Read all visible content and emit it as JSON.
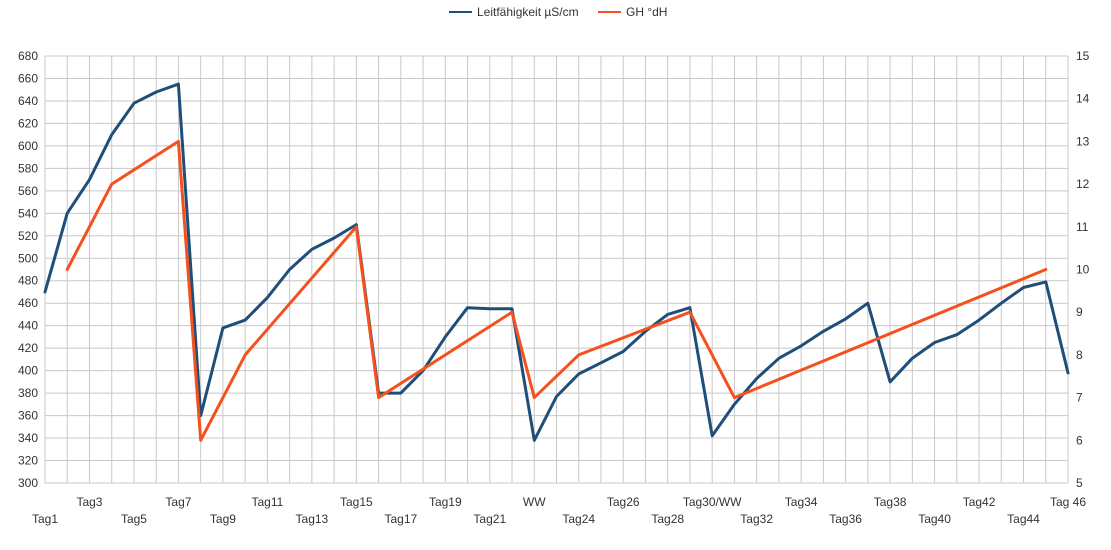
{
  "chart_data": {
    "type": "line",
    "legend": {
      "position": "top"
    },
    "grid": true,
    "left_axis": {
      "range": [
        300,
        680
      ],
      "ticks": [
        300,
        320,
        340,
        360,
        380,
        400,
        420,
        440,
        460,
        480,
        500,
        520,
        540,
        560,
        580,
        600,
        620,
        640,
        660,
        680
      ]
    },
    "right_axis": {
      "range": [
        5,
        15
      ],
      "ticks": [
        5,
        6,
        7,
        8,
        9,
        10,
        11,
        12,
        13,
        14,
        15
      ]
    },
    "x_labels": [
      {
        "pos": 0,
        "row": 2,
        "text": "Tag1"
      },
      {
        "pos": 2,
        "row": 1,
        "text": "Tag3"
      },
      {
        "pos": 4,
        "row": 2,
        "text": "Tag5"
      },
      {
        "pos": 6,
        "row": 1,
        "text": "Tag7"
      },
      {
        "pos": 8,
        "row": 2,
        "text": "Tag9"
      },
      {
        "pos": 10,
        "row": 1,
        "text": "Tag11"
      },
      {
        "pos": 12,
        "row": 2,
        "text": "Tag13"
      },
      {
        "pos": 14,
        "row": 1,
        "text": "Tag15"
      },
      {
        "pos": 16,
        "row": 2,
        "text": "Tag17"
      },
      {
        "pos": 18,
        "row": 1,
        "text": "Tag19"
      },
      {
        "pos": 20,
        "row": 2,
        "text": "Tag21"
      },
      {
        "pos": 22,
        "row": 1,
        "text": "WW"
      },
      {
        "pos": 24,
        "row": 2,
        "text": "Tag24"
      },
      {
        "pos": 26,
        "row": 1,
        "text": "Tag26"
      },
      {
        "pos": 28,
        "row": 2,
        "text": "Tag28"
      },
      {
        "pos": 30,
        "row": 1,
        "text": "Tag30/WW"
      },
      {
        "pos": 32,
        "row": 2,
        "text": "Tag32"
      },
      {
        "pos": 34,
        "row": 1,
        "text": "Tag34"
      },
      {
        "pos": 36,
        "row": 2,
        "text": "Tag36"
      },
      {
        "pos": 38,
        "row": 1,
        "text": "Tag38"
      },
      {
        "pos": 40,
        "row": 2,
        "text": "Tag40"
      },
      {
        "pos": 42,
        "row": 1,
        "text": "Tag42"
      },
      {
        "pos": 44,
        "row": 2,
        "text": "Tag44"
      },
      {
        "pos": 46,
        "row": 1,
        "text": "Tag 46"
      }
    ],
    "series": [
      {
        "name": "Leitfähigkeit µS/cm",
        "axis": "left",
        "color": "#1f4e79",
        "points": [
          [
            0,
            470
          ],
          [
            1,
            540
          ],
          [
            2,
            570
          ],
          [
            3,
            610
          ],
          [
            4,
            638
          ],
          [
            5,
            648
          ],
          [
            6,
            655
          ],
          [
            7,
            360
          ],
          [
            8,
            438
          ],
          [
            9,
            445
          ],
          [
            10,
            465
          ],
          [
            11,
            490
          ],
          [
            12,
            508
          ],
          [
            13,
            518
          ],
          [
            14,
            530
          ],
          [
            15,
            380
          ],
          [
            16,
            380
          ],
          [
            17,
            400
          ],
          [
            18,
            430
          ],
          [
            19,
            456
          ],
          [
            20,
            455
          ],
          [
            21,
            455
          ],
          [
            22,
            338
          ],
          [
            23,
            377
          ],
          [
            24,
            397
          ],
          [
            25,
            407
          ],
          [
            26,
            417
          ],
          [
            27,
            435
          ],
          [
            28,
            450
          ],
          [
            29,
            456
          ],
          [
            30,
            342
          ],
          [
            31,
            370
          ],
          [
            32,
            393
          ],
          [
            33,
            411
          ],
          [
            34,
            422
          ],
          [
            35,
            435
          ],
          [
            36,
            446
          ],
          [
            37,
            460
          ],
          [
            38,
            390
          ],
          [
            39,
            411
          ],
          [
            40,
            425
          ],
          [
            41,
            432
          ],
          [
            42,
            445
          ],
          [
            43,
            460
          ],
          [
            44,
            474
          ],
          [
            45,
            479
          ],
          [
            46,
            398
          ]
        ]
      },
      {
        "name": "GH °dH",
        "axis": "right",
        "color": "#f4511e",
        "points": [
          [
            1,
            10
          ],
          [
            3,
            12
          ],
          [
            6,
            13
          ],
          [
            7,
            6
          ],
          [
            9,
            8
          ],
          [
            14,
            11
          ],
          [
            15,
            7
          ],
          [
            21,
            9
          ],
          [
            22,
            7
          ],
          [
            24,
            8
          ],
          [
            29,
            9
          ],
          [
            31,
            7
          ],
          [
            45,
            10
          ]
        ]
      }
    ]
  }
}
